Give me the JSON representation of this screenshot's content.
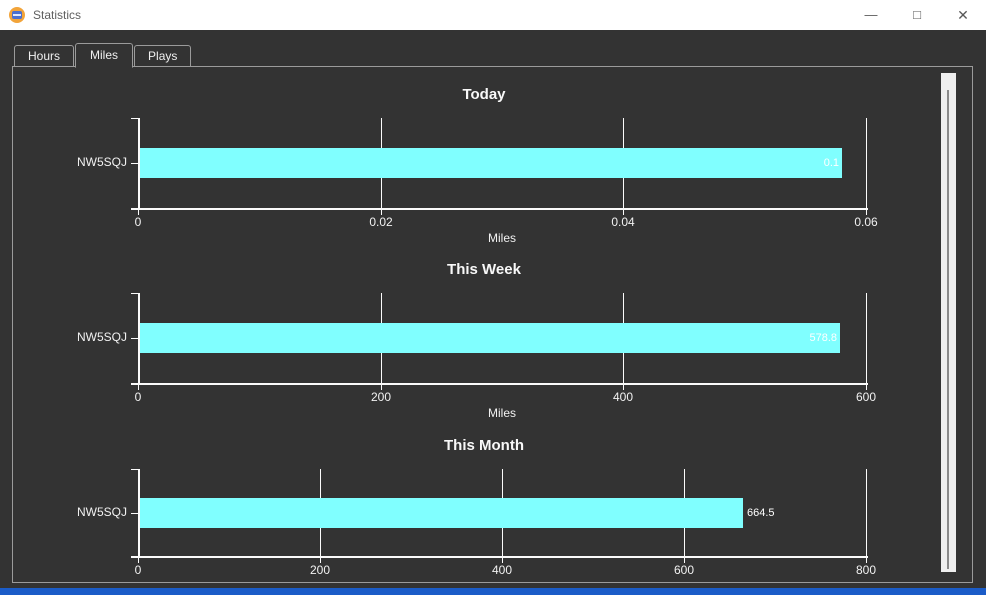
{
  "window": {
    "title": "Statistics",
    "controls": [
      {
        "name": "minimize",
        "glyph": "—"
      },
      {
        "name": "maximize",
        "glyph": "□"
      },
      {
        "name": "close",
        "glyph": "✕"
      }
    ]
  },
  "tabs": [
    {
      "label": "Hours",
      "selected": false
    },
    {
      "label": "Miles",
      "selected": true
    },
    {
      "label": "Plays",
      "selected": false
    }
  ],
  "colors": {
    "bar": "#80ffff",
    "panel_bg": "#333333",
    "titlebar_bg": "#ffffff",
    "axis": "#fbfbfb",
    "accent_strip": "#1b5cc8"
  },
  "chart_data": [
    {
      "type": "bar",
      "orientation": "horizontal",
      "title": "Today",
      "categories": [
        "NW5SQJ"
      ],
      "values": [
        0.058
      ],
      "value_labels": [
        "0.1"
      ],
      "value_label_position": "inside",
      "xlabel": "Miles",
      "xlim": [
        0,
        0.06
      ],
      "xticks": [
        0,
        0.02,
        0.04,
        0.06
      ],
      "xtick_labels": [
        "0",
        "0.02",
        "0.04",
        "0.06"
      ],
      "grid": true,
      "bar_color": "#80ffff"
    },
    {
      "type": "bar",
      "orientation": "horizontal",
      "title": "This Week",
      "categories": [
        "NW5SQJ"
      ],
      "values": [
        578.8
      ],
      "value_labels": [
        "578.8"
      ],
      "value_label_position": "inside",
      "xlabel": "Miles",
      "xlim": [
        0,
        600
      ],
      "xticks": [
        0,
        200,
        400,
        600
      ],
      "xtick_labels": [
        "0",
        "200",
        "400",
        "600"
      ],
      "grid": true,
      "bar_color": "#80ffff"
    },
    {
      "type": "bar",
      "orientation": "horizontal",
      "title": "This Month",
      "categories": [
        "NW5SQJ"
      ],
      "values": [
        664.5
      ],
      "value_labels": [
        "664.5"
      ],
      "value_label_position": "outside",
      "xlabel": "",
      "xlim": [
        0,
        800
      ],
      "xticks": [
        0,
        200,
        400,
        600,
        800
      ],
      "xtick_labels": [
        "0",
        "200",
        "400",
        "600",
        "800"
      ],
      "grid": true,
      "bar_color": "#80ffff"
    }
  ]
}
